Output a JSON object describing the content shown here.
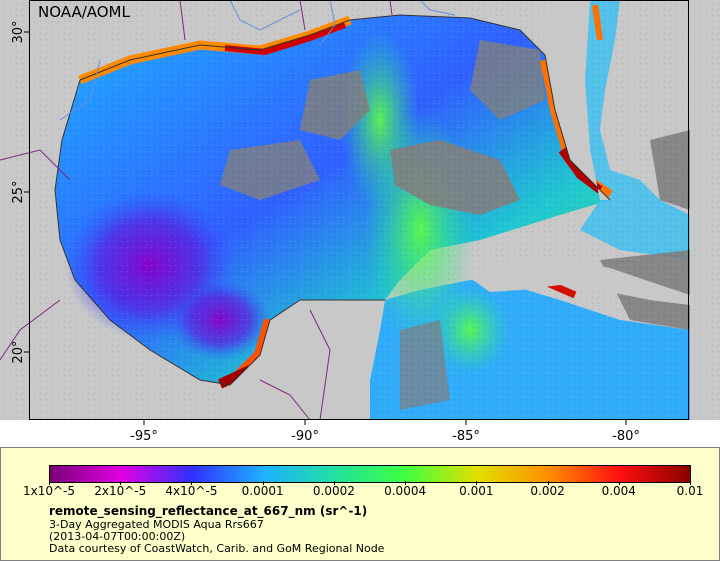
{
  "credit": "NOAA/AOML",
  "axes": {
    "x_ticks": [
      "-95°",
      "-90°",
      "-85°",
      "-80°"
    ],
    "y_ticks": [
      "30°",
      "25°",
      "20°"
    ]
  },
  "colors": {
    "land": "#c8c8c8",
    "no_data": "#7f7f7f",
    "coastline": "#333333",
    "rivers": "#6b8fd0",
    "borders": "#7a2a7a"
  },
  "colorbar": {
    "labels": [
      "1x10^-5",
      "2x10^-5",
      "4x10^-5",
      "0.0001",
      "0.0002",
      "0.0004",
      "0.001",
      "0.002",
      "0.004",
      "0.01"
    ],
    "stops": [
      "#7a007a",
      "#e000e0",
      "#3030ff",
      "#1fb0ff",
      "#20e0a0",
      "#40ff40",
      "#e0e000",
      "#ff9000",
      "#ff1010",
      "#8b0000"
    ]
  },
  "legend": {
    "title": "remote_sensing_reflectance_at_667_nm (sr^-1)",
    "line1": "3-Day Aggregated MODIS Aqua Rrs667",
    "line2": "(2013-04-07T00:00:00Z)",
    "line3": "Data courtesy of CoastWatch, Carib. and GoM Regional Node"
  }
}
